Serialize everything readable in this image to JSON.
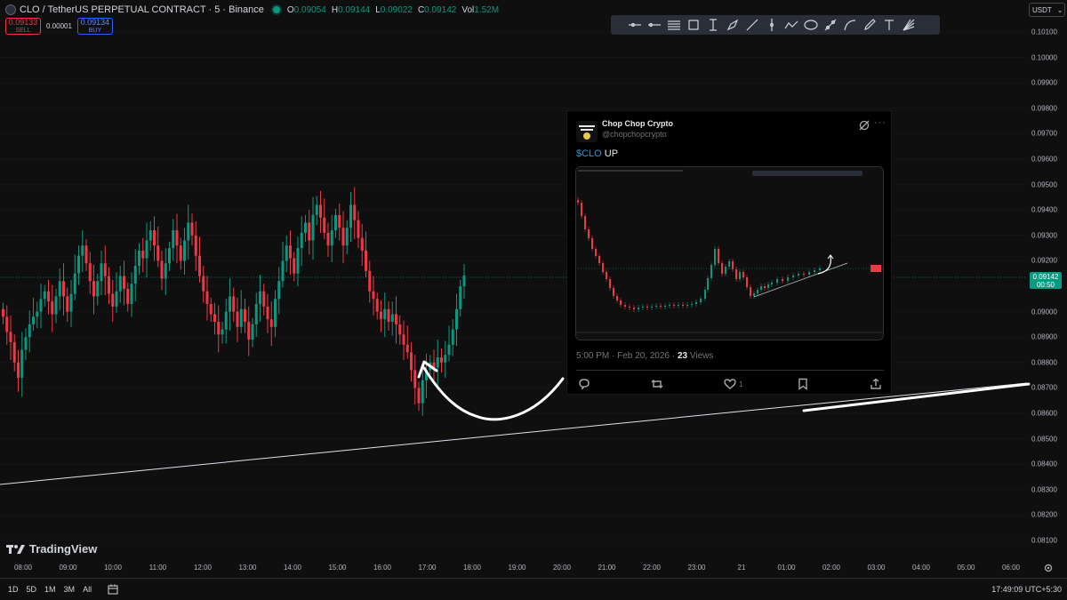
{
  "header": {
    "symbol_title": "CLO / TetherUS PERPETUAL CONTRACT · 5 · Binance",
    "ohlc": [
      {
        "k": "O",
        "v": "0.09054"
      },
      {
        "k": "H",
        "v": "0.09144"
      },
      {
        "k": "L",
        "v": "0.09022"
      },
      {
        "k": "C",
        "v": "0.09142"
      },
      {
        "k": "Vol",
        "v": "1.52M"
      }
    ]
  },
  "trade": {
    "sell_price": "0.09133",
    "sell_label": "SELL",
    "spread": "0.00001",
    "buy_price": "0.09134",
    "buy_label": "BUY"
  },
  "toolbar_icons": [
    "horizontal-ray-icon",
    "horizontal-line-icon",
    "fib-retracement-icon",
    "rectangle-icon",
    "text-cursor-icon",
    "brush-icon",
    "trendline-icon",
    "vertical-line-icon",
    "path-icon",
    "ellipse-icon",
    "arrow-marker-icon",
    "curve-icon",
    "pencil-icon",
    "text-icon",
    "fib-fan-icon"
  ],
  "price_axis": {
    "currency": "USDT",
    "ticks": [
      "0.10100",
      "0.10000",
      "0.09900",
      "0.09800",
      "0.09700",
      "0.09600",
      "0.09500",
      "0.09400",
      "0.09300",
      "0.09200",
      "0.09100",
      "0.09000",
      "0.08900",
      "0.08800",
      "0.08700",
      "0.08600",
      "0.08500",
      "0.08400",
      "0.08300",
      "0.08200",
      "0.08100"
    ],
    "current_price": "0.09142",
    "countdown": "00:50"
  },
  "time_axis": [
    "08:00",
    "09:00",
    "10:00",
    "11:00",
    "12:00",
    "13:00",
    "14:00",
    "15:00",
    "16:00",
    "17:00",
    "18:00",
    "19:00",
    "20:00",
    "21:00",
    "22:00",
    "23:00",
    "21",
    "01:00",
    "02:00",
    "03:00",
    "04:00",
    "05:00",
    "06:00"
  ],
  "bottom_bar": {
    "ranges": [
      "1D",
      "5D",
      "1M",
      "3M",
      "All"
    ],
    "clock": "17:49:09 UTC+5:30"
  },
  "logo": {
    "text": "TradingView"
  },
  "tweet": {
    "name": "Chop Chop Crypto",
    "handle": "@chopchopcrypto",
    "text_cashtag": "$CLO",
    "text_rest": " UP",
    "time": "5:00 PM · Feb 20, 2026 · ",
    "views_count": "23",
    "views_label": " Views",
    "likes": "1"
  },
  "chart_data": {
    "type": "candlestick",
    "symbol": "CLO/USDT",
    "interval": "5",
    "ylim": [
      0.0805,
      0.1015
    ],
    "last_price": 0.09142,
    "x_start": "07:40",
    "x_end": "17:45",
    "closes": [
      0.0898,
      0.0892,
      0.0888,
      0.088,
      0.0874,
      0.0885,
      0.089,
      0.0895,
      0.0898,
      0.09,
      0.0905,
      0.0908,
      0.0904,
      0.0899,
      0.0906,
      0.0912,
      0.0906,
      0.09,
      0.0907,
      0.0915,
      0.0922,
      0.0926,
      0.0919,
      0.0912,
      0.0906,
      0.0912,
      0.0919,
      0.0914,
      0.0907,
      0.0902,
      0.0908,
      0.0914,
      0.0909,
      0.0903,
      0.0911,
      0.0918,
      0.0924,
      0.0921,
      0.0928,
      0.0932,
      0.0926,
      0.092,
      0.0913,
      0.0919,
      0.0925,
      0.0932,
      0.0926,
      0.092,
      0.0928,
      0.0935,
      0.093,
      0.0922,
      0.0914,
      0.0908,
      0.0903,
      0.0899,
      0.0896,
      0.0891,
      0.0893,
      0.09,
      0.0906,
      0.09,
      0.0894,
      0.0901,
      0.0896,
      0.0889,
      0.0895,
      0.0903,
      0.0908,
      0.0902,
      0.0897,
      0.0894,
      0.0905,
      0.0912,
      0.092,
      0.0926,
      0.0921,
      0.0915,
      0.0925,
      0.0931,
      0.0935,
      0.0928,
      0.0938,
      0.0942,
      0.0937,
      0.0931,
      0.0926,
      0.0932,
      0.0938,
      0.0933,
      0.0926,
      0.0933,
      0.0942,
      0.0936,
      0.0929,
      0.0924,
      0.0916,
      0.0908,
      0.0905,
      0.09,
      0.0897,
      0.0901,
      0.0896,
      0.0899,
      0.0895,
      0.0891,
      0.0887,
      0.0884,
      0.0877,
      0.087,
      0.0864,
      0.0873,
      0.0877,
      0.088,
      0.0878,
      0.0882,
      0.088,
      0.0883,
      0.0887,
      0.0893,
      0.0901,
      0.091,
      0.09142
    ]
  }
}
